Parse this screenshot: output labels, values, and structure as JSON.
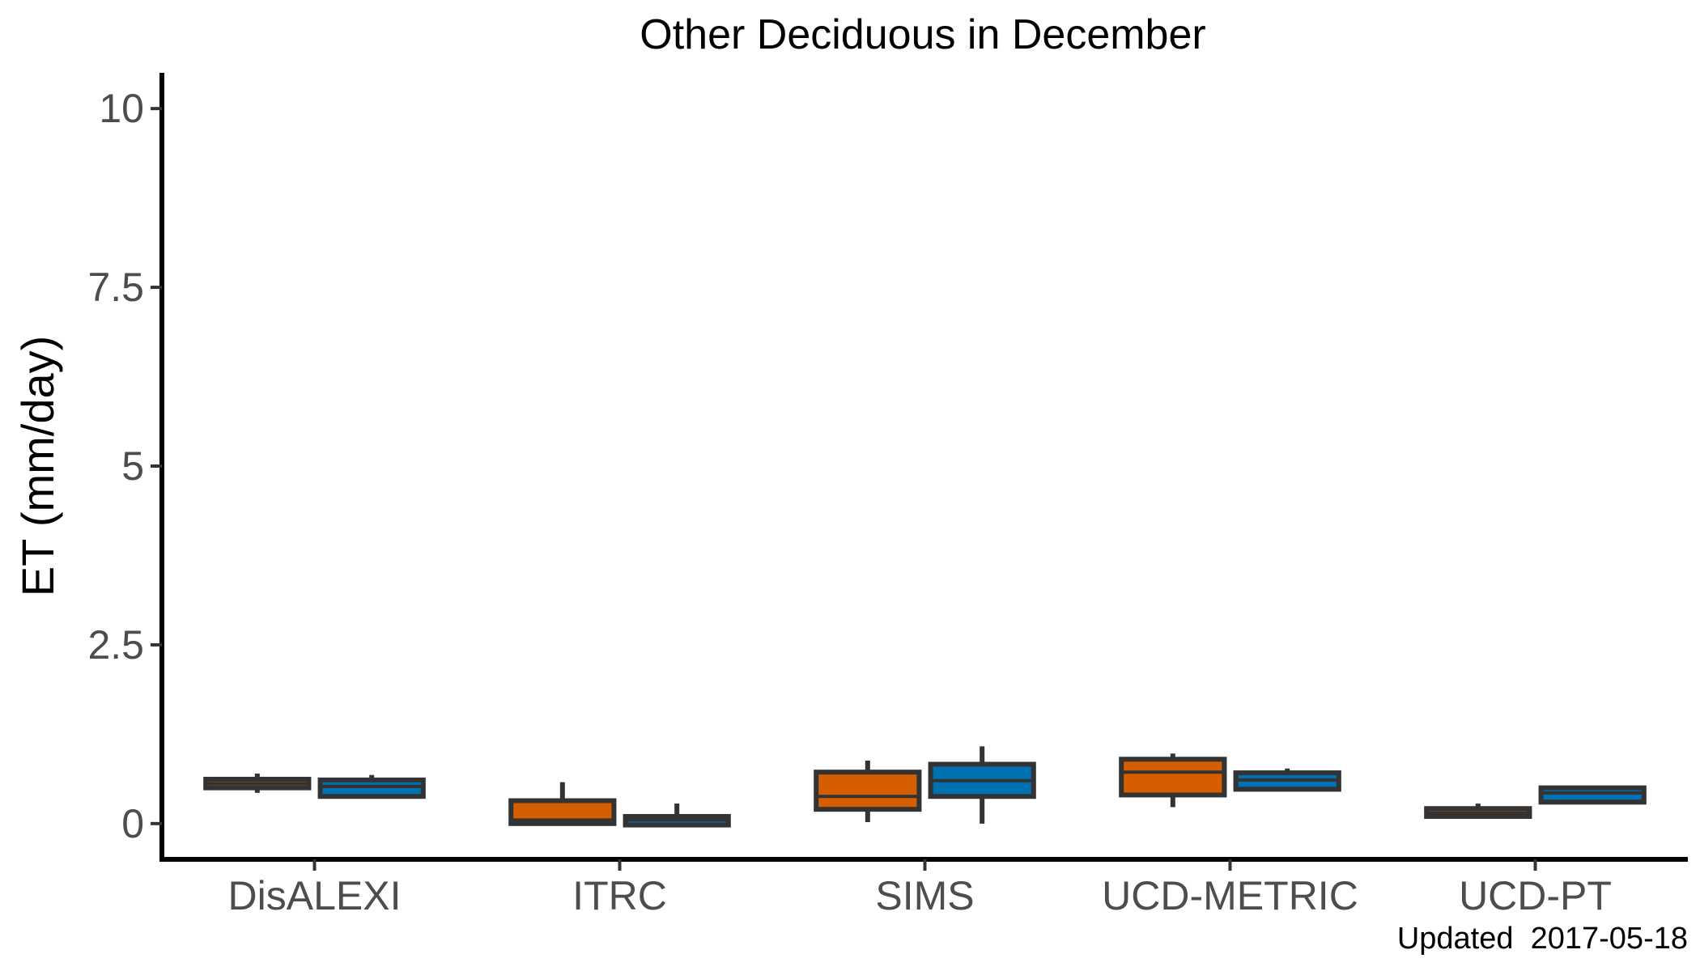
{
  "chart_data": {
    "type": "boxplot",
    "title": "Other Deciduous in December",
    "ylabel": "ET (mm/day)",
    "xlabel": "",
    "ylim": [
      -0.5,
      10.5
    ],
    "yticks": [
      "0",
      "2.5",
      "5",
      "7.5",
      "10"
    ],
    "ytick_values": [
      0,
      2.5,
      5,
      7.5,
      10
    ],
    "categories": [
      "DisALEXI",
      "ITRC",
      "SIMS",
      "UCD-METRIC",
      "UCD-PT"
    ],
    "caption": "Updated  2017-05-18",
    "grid": false,
    "legend": "none",
    "series": [
      {
        "color": "#D55E00",
        "boxes": [
          {
            "min": 0.43,
            "q1": 0.5,
            "median": 0.56,
            "q3": 0.62,
            "max": 0.7
          },
          {
            "min": 0.0,
            "q1": 0.0,
            "median": 0.05,
            "q3": 0.32,
            "max": 0.58
          },
          {
            "min": 0.02,
            "q1": 0.2,
            "median": 0.38,
            "q3": 0.72,
            "max": 0.88
          },
          {
            "min": 0.23,
            "q1": 0.4,
            "median": 0.72,
            "q3": 0.9,
            "max": 0.98
          },
          {
            "min": 0.08,
            "q1": 0.1,
            "median": 0.15,
            "q3": 0.21,
            "max": 0.28
          }
        ]
      },
      {
        "color": "#0072B2",
        "boxes": [
          {
            "min": 0.35,
            "q1": 0.38,
            "median": 0.52,
            "q3": 0.61,
            "max": 0.68
          },
          {
            "min": -0.02,
            "q1": -0.02,
            "median": 0.05,
            "q3": 0.1,
            "max": 0.28
          },
          {
            "min": 0.0,
            "q1": 0.38,
            "median": 0.6,
            "q3": 0.83,
            "max": 1.08
          },
          {
            "min": 0.45,
            "q1": 0.48,
            "median": 0.61,
            "q3": 0.71,
            "max": 0.77
          },
          {
            "min": 0.28,
            "q1": 0.3,
            "median": 0.43,
            "q3": 0.5,
            "max": 0.5
          }
        ]
      }
    ]
  }
}
